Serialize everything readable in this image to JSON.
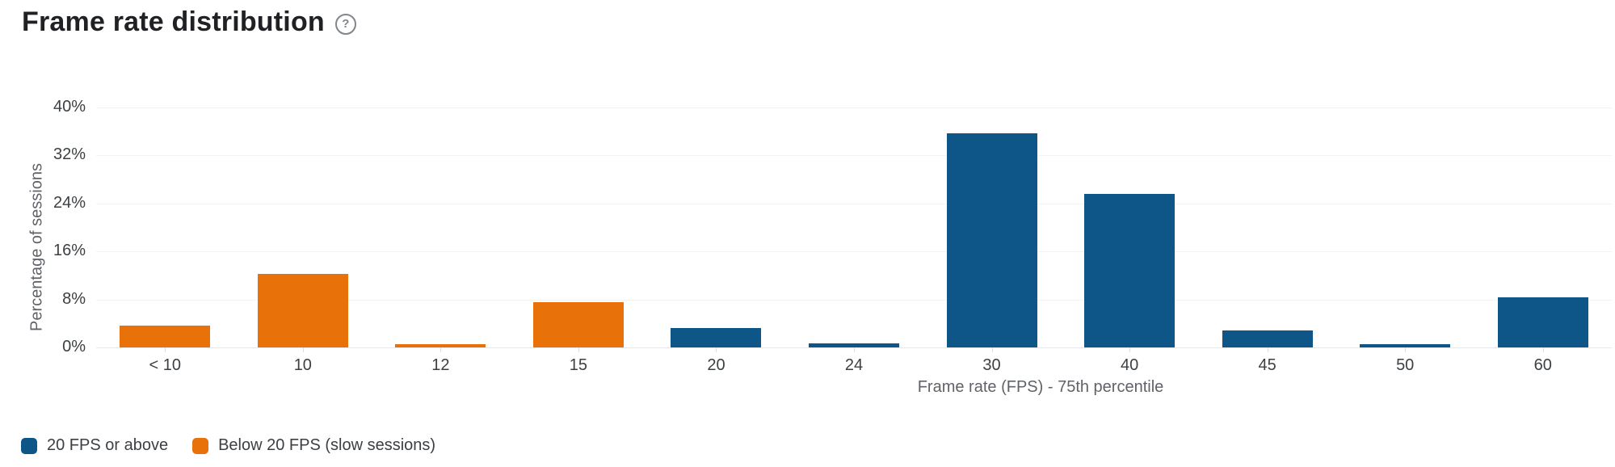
{
  "header": {
    "title": "Frame rate distribution",
    "help_icon": "question-mark-circle",
    "help_glyph": "?"
  },
  "chart_data": {
    "type": "bar",
    "title": "Frame rate distribution",
    "xlabel": "Frame rate (FPS) - 75th percentile",
    "ylabel": "Percentage of sessions",
    "categories": [
      "< 10",
      "10",
      "12",
      "15",
      "20",
      "24",
      "30",
      "40",
      "45",
      "50",
      "60"
    ],
    "series": [
      {
        "name": "20 FPS or above",
        "color": "#0e5688",
        "values": [
          null,
          null,
          null,
          null,
          3.2,
          0.7,
          35.7,
          25.6,
          2.8,
          0.6,
          8.3
        ]
      },
      {
        "name": "Below 20 FPS (slow sessions)",
        "color": "#e8710a",
        "values": [
          3.6,
          12.3,
          0.6,
          7.5,
          null,
          null,
          null,
          null,
          null,
          null,
          null
        ]
      }
    ],
    "ylim": [
      0,
      40
    ],
    "yticks": [
      {
        "value": 0,
        "label": "0%"
      },
      {
        "value": 8,
        "label": "8%"
      },
      {
        "value": 16,
        "label": "16%"
      },
      {
        "value": 24,
        "label": "24%"
      },
      {
        "value": 32,
        "label": "32%"
      },
      {
        "value": 40,
        "label": "40%"
      }
    ],
    "grid": true,
    "legend_position": "bottom-left"
  },
  "colors": {
    "blue_series": "#0e5688",
    "orange_series": "#e8710a",
    "gridline": "#f1f3f4",
    "baseline": "#e6e8eb",
    "title_text": "#202124",
    "axis_text": "#5f6368",
    "tick_text": "#3c4043"
  }
}
